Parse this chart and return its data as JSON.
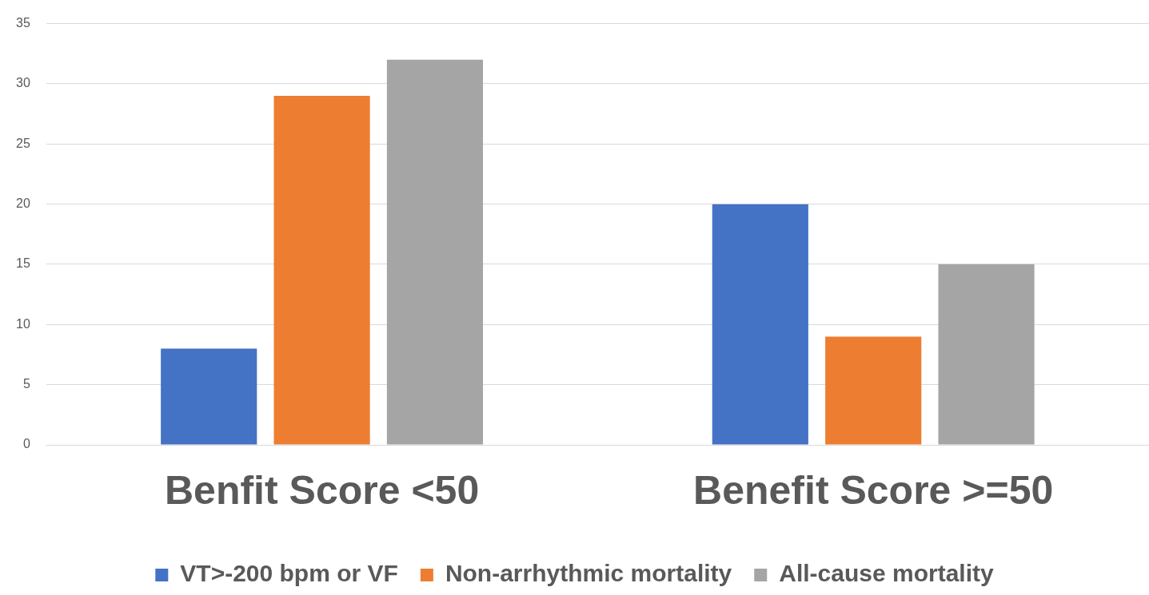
{
  "chart_data": {
    "type": "bar",
    "categories": [
      "Benfit Score <50",
      "Benefit Score >=50"
    ],
    "series": [
      {
        "name": "VT>-200 bpm or VF",
        "color": "#4472c4",
        "values": [
          8,
          20
        ]
      },
      {
        "name": "Non-arrhythmic mortality",
        "color": "#ed7d31",
        "values": [
          29,
          9
        ]
      },
      {
        "name": "All-cause mortality",
        "color": "#a5a5a5",
        "values": [
          32,
          15
        ]
      }
    ],
    "ylim": [
      0,
      35
    ],
    "yticks": [
      0,
      5,
      10,
      15,
      20,
      25,
      30,
      35
    ],
    "grid": "y",
    "legend": "bottom"
  }
}
